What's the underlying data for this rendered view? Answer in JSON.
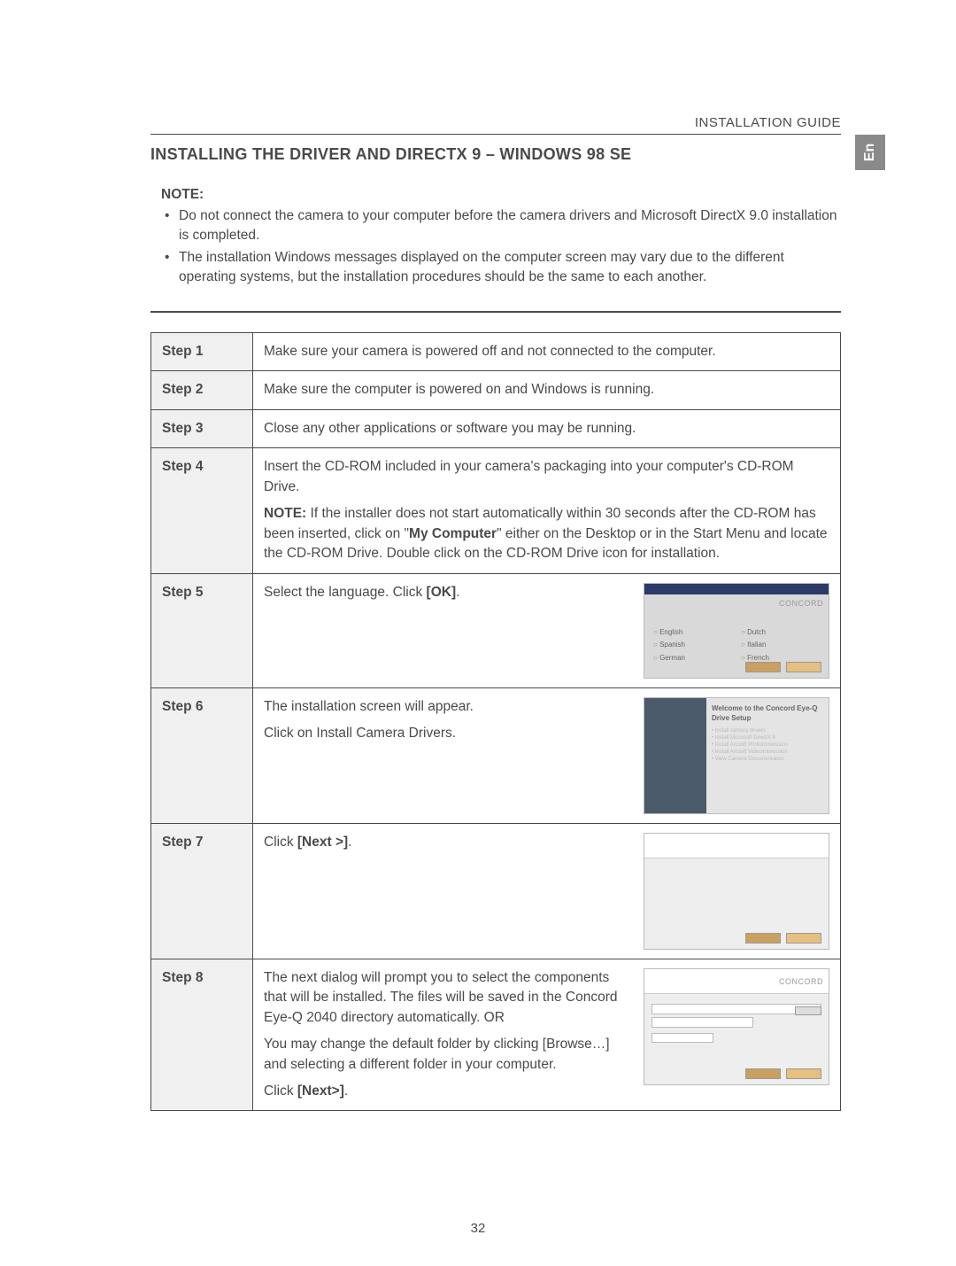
{
  "header": {
    "guide_label": "INSTALLATION GUIDE",
    "section_title": "INSTALLING THE DRIVER AND DIRECTX 9 – WINDOWS 98 SE",
    "lang_tab": "En",
    "page_number": "32"
  },
  "note": {
    "title": "NOTE:",
    "items": [
      "Do not connect the camera to your computer before the camera drivers and Microsoft DirectX 9.0 installation is completed.",
      "The installation Windows messages displayed on the computer screen may vary due to the different operating systems, but the installation procedures should be the same to each another."
    ]
  },
  "steps": [
    {
      "label": "Step 1",
      "body_html": "Make sure your camera is powered off and not connected to the computer.",
      "screenshot": null
    },
    {
      "label": "Step 2",
      "body_html": "Make sure the computer is powered on and Windows is running.",
      "screenshot": null
    },
    {
      "label": "Step 3",
      "body_html": "Close any other applications or software you may be running.",
      "screenshot": null
    },
    {
      "label": "Step 4",
      "body_html": "Insert the CD-ROM included in your camera's packaging into your computer's CD-ROM Drive.<div class=\"sub\"><b>NOTE:</b> If the installer does not start automatically within 30 seconds after the CD-ROM has been inserted, click on \"<b>My Computer</b>\" either on the Desktop or  in the Start Menu and locate the CD-ROM Drive. Double click on the CD-ROM Drive icon for installation.</div>",
      "screenshot": null
    },
    {
      "label": "Step 5",
      "body_html": "Select the language. Click <b>[OK]</b>.",
      "screenshot": {
        "type": "language",
        "size": "small",
        "logo": "CONCORD",
        "radios": [
          "English",
          "Dutch",
          "Spanish",
          "Italian",
          "German",
          "French"
        ],
        "buttons": [
          "OK",
          "Cancel"
        ]
      }
    },
    {
      "label": "Step 6",
      "body_html": "The installation screen will appear.<div class=\"sub\">Click on Install Camera Drivers.</div>",
      "screenshot": {
        "type": "installer",
        "size": "medium",
        "heading": "Welcome to the Concord Eye-Q Drive Setup",
        "lines": [
          "Install camera drivers",
          "Install Microsoft DirectX 9",
          "Install Arcsoft PhotoImpression",
          "Install Arcsoft VideoImpression",
          "View Camera Documentation"
        ]
      }
    },
    {
      "label": "Step 7",
      "body_html": "Click <b>[Next >]</b>.",
      "screenshot": {
        "type": "wizard_next",
        "size": "wiz"
      }
    },
    {
      "label": "Step 8",
      "body_html": "The next dialog will prompt you to select the components that will be installed. The files will be saved in the Concord Eye-Q 2040 directory automatically.  OR<div class=\"sub\">You may change the default folder by clicking [Browse…] and selecting a different folder in your computer.</div><div class=\"sub\">Click <b>[Next>]</b>.</div>",
      "screenshot": {
        "type": "wizard_browse",
        "size": "wiz",
        "logo": "CONCORD"
      }
    }
  ],
  "colors": {
    "text": "#4a4a4a",
    "border": "#4a4a4a",
    "step_bg": "#f0f0f0",
    "lang_tab_bg": "#8a8a8a",
    "lang_tab_fg": "#ffffff"
  }
}
